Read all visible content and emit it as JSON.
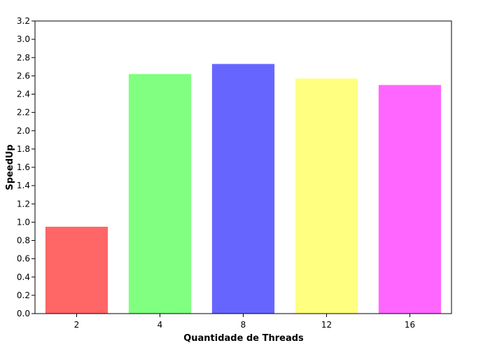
{
  "chart_data": {
    "type": "bar",
    "title": "",
    "xlabel": "Quantidade de Threads",
    "ylabel": "SpeedUp",
    "categories": [
      "2",
      "4",
      "8",
      "12",
      "16"
    ],
    "values": [
      0.95,
      2.62,
      2.73,
      2.57,
      2.5
    ],
    "colors": [
      "#ff6666",
      "#80ff80",
      "#6666ff",
      "#ffff80",
      "#ff66ff"
    ],
    "ylim": [
      0,
      3.2
    ],
    "yticks": [
      "0.0",
      "0.2",
      "0.4",
      "0.6",
      "0.8",
      "1.0",
      "1.2",
      "1.4",
      "1.6",
      "1.8",
      "2.0",
      "2.2",
      "2.4",
      "2.6",
      "2.8",
      "3.0",
      "3.2"
    ],
    "grid": false,
    "legend": "none"
  }
}
